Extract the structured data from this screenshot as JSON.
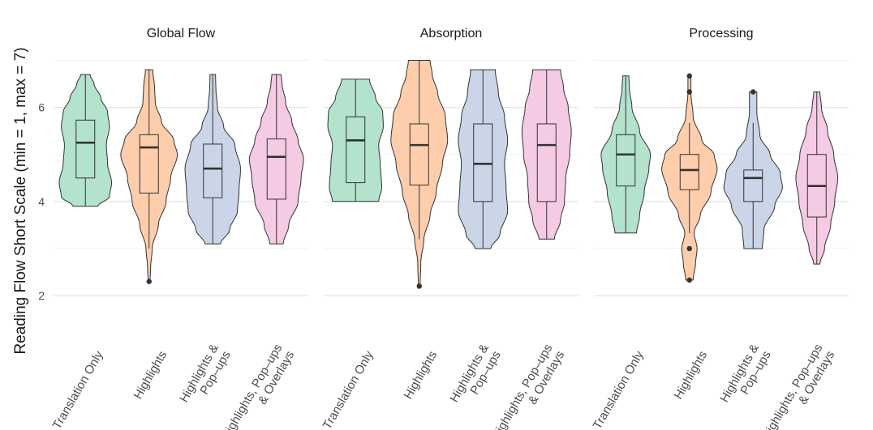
{
  "chart_data": {
    "type": "violin",
    "ylabel": "Reading Flow Short Scale (min = 1, max = 7)",
    "xlabel": "",
    "ylim": [
      1.02,
      7.25
    ],
    "yticks": [
      2,
      4,
      6
    ],
    "grid": true,
    "categories": [
      [
        "Translation Only"
      ],
      [
        "Highlights"
      ],
      [
        "Highlights &",
        "Pop–ups"
      ],
      [
        "Highlights, Pop–ups",
        "& Overlays"
      ]
    ],
    "colors": {
      "Translation Only": "#b3e2cd",
      "Highlights": "#fdcdac",
      "Highlights & Pop-ups": "#cbd5e8",
      "Highlights, Pop-ups & Overlays": "#f4cae4"
    },
    "facets": [
      {
        "title": "Global Flow",
        "groups": [
          {
            "min": 3.9,
            "max": 6.7,
            "q1": 4.5,
            "median": 5.25,
            "q3": 5.73,
            "wlow": 3.9,
            "whigh": 6.7,
            "outliers": [],
            "density": [
              [
                3.9,
                0.4
              ],
              [
                4.1,
                0.78
              ],
              [
                4.4,
                0.85
              ],
              [
                4.8,
                0.72
              ],
              [
                5.2,
                0.68
              ],
              [
                5.6,
                0.78
              ],
              [
                5.9,
                0.72
              ],
              [
                6.2,
                0.5
              ],
              [
                6.5,
                0.28
              ],
              [
                6.7,
                0.15
              ]
            ]
          },
          {
            "min": 2.3,
            "max": 6.8,
            "q1": 4.18,
            "median": 5.15,
            "q3": 5.42,
            "wlow": 3.0,
            "whigh": 6.8,
            "outliers": [
              2.3
            ],
            "density": [
              [
                2.3,
                0.03
              ],
              [
                2.6,
                0.05
              ],
              [
                3.0,
                0.1
              ],
              [
                3.5,
                0.3
              ],
              [
                4.0,
                0.55
              ],
              [
                4.5,
                0.7
              ],
              [
                5.0,
                0.92
              ],
              [
                5.3,
                0.8
              ],
              [
                5.7,
                0.4
              ],
              [
                6.1,
                0.2
              ],
              [
                6.4,
                0.18
              ],
              [
                6.8,
                0.12
              ]
            ]
          },
          {
            "min": 3.1,
            "max": 6.7,
            "q1": 4.08,
            "median": 4.7,
            "q3": 5.22,
            "wlow": 3.1,
            "whigh": 6.7,
            "outliers": [],
            "density": [
              [
                3.1,
                0.25
              ],
              [
                3.4,
                0.55
              ],
              [
                3.8,
                0.8
              ],
              [
                4.2,
                0.85
              ],
              [
                4.7,
                0.9
              ],
              [
                5.2,
                0.72
              ],
              [
                5.6,
                0.35
              ],
              [
                6.0,
                0.15
              ],
              [
                6.4,
                0.1
              ],
              [
                6.7,
                0.09
              ]
            ]
          },
          {
            "min": 3.1,
            "max": 6.7,
            "q1": 4.05,
            "median": 4.95,
            "q3": 5.33,
            "wlow": 3.1,
            "whigh": 6.7,
            "outliers": [],
            "density": [
              [
                3.1,
                0.22
              ],
              [
                3.5,
                0.4
              ],
              [
                4.0,
                0.7
              ],
              [
                4.5,
                0.8
              ],
              [
                4.9,
                0.88
              ],
              [
                5.3,
                0.7
              ],
              [
                5.7,
                0.5
              ],
              [
                6.1,
                0.3
              ],
              [
                6.5,
                0.18
              ],
              [
                6.7,
                0.15
              ]
            ]
          }
        ]
      },
      {
        "title": "Absorption",
        "groups": [
          {
            "min": 4.0,
            "max": 6.6,
            "q1": 4.4,
            "median": 5.3,
            "q3": 5.8,
            "wlow": 4.0,
            "whigh": 6.6,
            "outliers": [],
            "density": [
              [
                4.0,
                0.75
              ],
              [
                4.3,
                0.85
              ],
              [
                4.8,
                0.8
              ],
              [
                5.2,
                0.75
              ],
              [
                5.6,
                0.9
              ],
              [
                5.9,
                0.88
              ],
              [
                6.2,
                0.65
              ],
              [
                6.6,
                0.45
              ]
            ]
          },
          {
            "min": 2.2,
            "max": 7.0,
            "q1": 4.35,
            "median": 5.2,
            "q3": 5.65,
            "wlow": 3.2,
            "whigh": 7.0,
            "outliers": [
              2.2
            ],
            "density": [
              [
                2.2,
                0.03
              ],
              [
                2.7,
                0.05
              ],
              [
                3.2,
                0.15
              ],
              [
                3.7,
                0.35
              ],
              [
                4.2,
                0.55
              ],
              [
                4.8,
                0.75
              ],
              [
                5.3,
                0.92
              ],
              [
                5.8,
                0.85
              ],
              [
                6.3,
                0.6
              ],
              [
                6.7,
                0.42
              ],
              [
                7.0,
                0.35
              ]
            ]
          },
          {
            "min": 3.0,
            "max": 6.8,
            "q1": 4.0,
            "median": 4.8,
            "q3": 5.65,
            "wlow": 3.0,
            "whigh": 6.8,
            "outliers": [],
            "density": [
              [
                3.0,
                0.25
              ],
              [
                3.3,
                0.55
              ],
              [
                3.8,
                0.8
              ],
              [
                4.3,
                0.75
              ],
              [
                4.8,
                0.7
              ],
              [
                5.3,
                0.8
              ],
              [
                5.8,
                0.7
              ],
              [
                6.3,
                0.5
              ],
              [
                6.8,
                0.4
              ]
            ]
          },
          {
            "min": 3.2,
            "max": 6.8,
            "q1": 4.0,
            "median": 5.2,
            "q3": 5.65,
            "wlow": 3.2,
            "whigh": 6.8,
            "outliers": [],
            "density": [
              [
                3.2,
                0.25
              ],
              [
                3.6,
                0.45
              ],
              [
                4.0,
                0.58
              ],
              [
                4.5,
                0.62
              ],
              [
                5.0,
                0.75
              ],
              [
                5.5,
                0.8
              ],
              [
                6.0,
                0.7
              ],
              [
                6.4,
                0.55
              ],
              [
                6.8,
                0.45
              ]
            ]
          }
        ]
      },
      {
        "title": "Processing",
        "groups": [
          {
            "min": 3.33,
            "max": 6.67,
            "q1": 4.33,
            "median": 5.0,
            "q3": 5.42,
            "wlow": 3.33,
            "whigh": 6.67,
            "outliers": [],
            "density": [
              [
                3.33,
                0.35
              ],
              [
                3.7,
                0.45
              ],
              [
                4.2,
                0.6
              ],
              [
                4.7,
                0.75
              ],
              [
                5.0,
                0.8
              ],
              [
                5.5,
                0.45
              ],
              [
                6.0,
                0.2
              ],
              [
                6.4,
                0.12
              ],
              [
                6.67,
                0.1
              ]
            ]
          },
          {
            "min": 2.33,
            "max": 6.67,
            "q1": 4.25,
            "median": 4.67,
            "q3": 5.0,
            "wlow": 3.33,
            "whigh": 5.67,
            "outliers": [
              6.67,
              6.33,
              3.0,
              2.33
            ],
            "density": [
              [
                2.33,
                0.12
              ],
              [
                2.7,
                0.2
              ],
              [
                3.0,
                0.25
              ],
              [
                3.33,
                0.15
              ],
              [
                3.7,
                0.35
              ],
              [
                4.2,
                0.7
              ],
              [
                4.7,
                0.9
              ],
              [
                5.0,
                0.8
              ],
              [
                5.3,
                0.4
              ],
              [
                5.8,
                0.12
              ],
              [
                6.3,
                0.05
              ],
              [
                6.67,
                0.05
              ]
            ]
          },
          {
            "min": 3.0,
            "max": 6.33,
            "q1": 4.0,
            "median": 4.5,
            "q3": 4.67,
            "wlow": 3.0,
            "whigh": 5.67,
            "outliers": [
              6.33
            ],
            "density": [
              [
                3.0,
                0.3
              ],
              [
                3.4,
                0.35
              ],
              [
                3.9,
                0.7
              ],
              [
                4.3,
                0.95
              ],
              [
                4.6,
                0.88
              ],
              [
                5.0,
                0.55
              ],
              [
                5.4,
                0.22
              ],
              [
                5.9,
                0.12
              ],
              [
                6.2,
                0.12
              ],
              [
                6.33,
                0.12
              ]
            ]
          },
          {
            "min": 2.67,
            "max": 6.33,
            "q1": 3.67,
            "median": 4.33,
            "q3": 5.0,
            "wlow": 2.67,
            "whigh": 6.33,
            "outliers": [],
            "density": [
              [
                2.67,
                0.1
              ],
              [
                3.0,
                0.25
              ],
              [
                3.5,
                0.45
              ],
              [
                4.0,
                0.58
              ],
              [
                4.5,
                0.68
              ],
              [
                5.0,
                0.55
              ],
              [
                5.5,
                0.35
              ],
              [
                6.0,
                0.15
              ],
              [
                6.33,
                0.1
              ]
            ]
          }
        ]
      }
    ]
  }
}
